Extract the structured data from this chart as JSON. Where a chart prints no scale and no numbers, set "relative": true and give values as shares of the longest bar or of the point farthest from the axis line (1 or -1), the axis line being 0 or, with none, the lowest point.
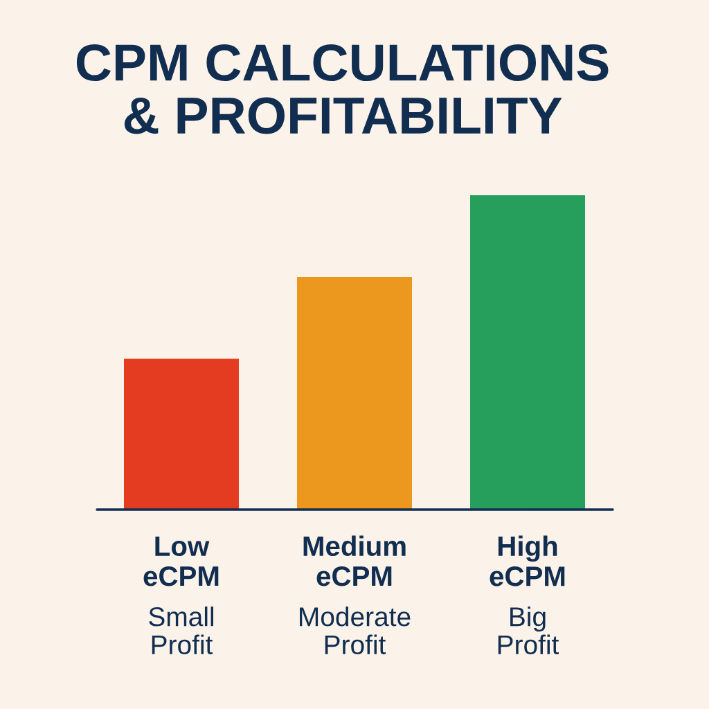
{
  "chart_data": {
    "type": "bar",
    "title": "CPM CALCULATIONS\n& PROFITABILITY",
    "categories": [
      "Low\neCPM",
      "Medium\neCPM",
      "High\neCPM"
    ],
    "values": [
      0.48,
      0.74,
      1
    ],
    "colors": [
      "#e33c21",
      "#ec981f",
      "#279f5c"
    ],
    "relative": true,
    "annotations": [
      "Small\nProfit",
      "Moderate\nProfit",
      "Big\nProfit"
    ]
  }
}
